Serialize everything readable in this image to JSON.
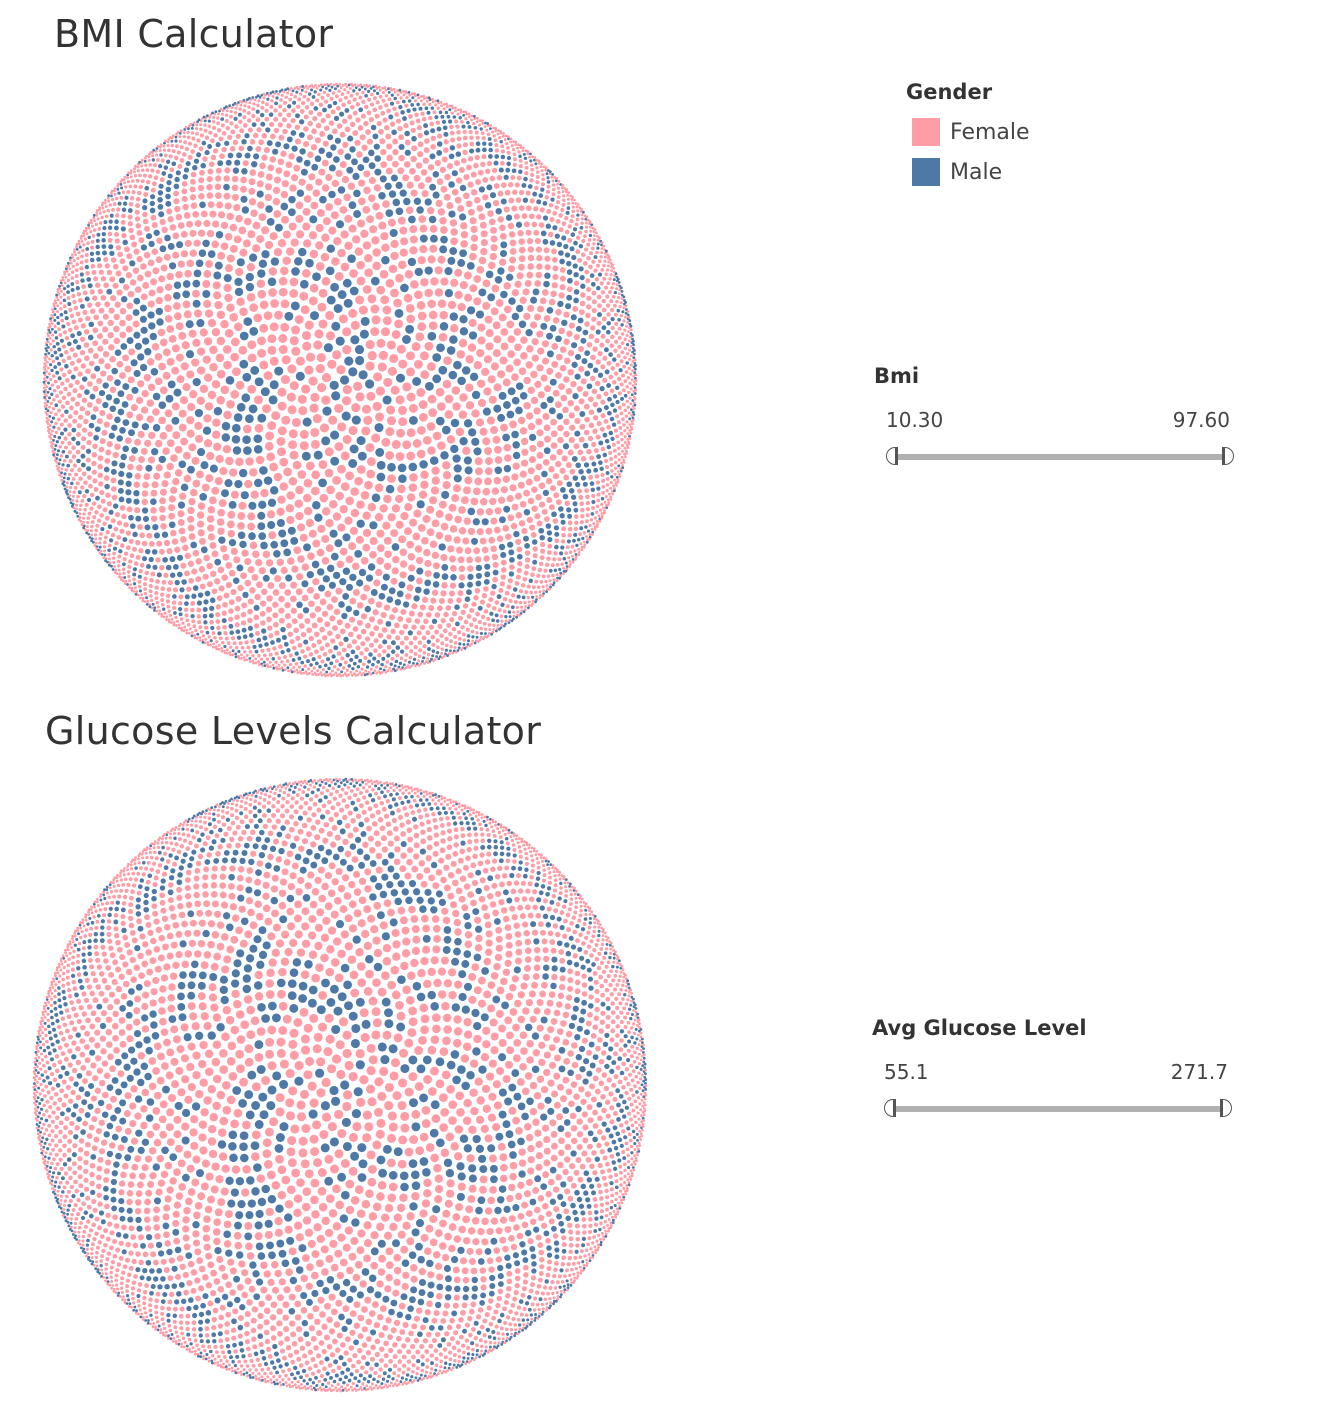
{
  "colors": {
    "female": "#ff9da7",
    "male": "#4e79a7",
    "text": "#333333",
    "slider_track": "#b0b0b0"
  },
  "legend": {
    "title": "Gender",
    "items": [
      {
        "label": "Female",
        "color": "#ff9da7"
      },
      {
        "label": "Male",
        "color": "#4e79a7"
      }
    ]
  },
  "filters": {
    "bmi": {
      "title": "Bmi",
      "min_label": "10.30",
      "max_label": "97.60",
      "min": 10.3,
      "max": 97.6
    },
    "glucose": {
      "title": "Avg Glucose Level",
      "min_label": "55.1",
      "max_label": "271.7",
      "min": 55.1,
      "max": 271.7
    }
  },
  "chart_data": [
    {
      "type": "packed-bubble",
      "title": "BMI Calculator",
      "color_field": "Gender",
      "categories": [
        "Female",
        "Male"
      ],
      "approx_share": {
        "Female": 0.7,
        "Male": 0.3
      },
      "legend_position": "right"
    },
    {
      "type": "packed-bubble",
      "title": "Glucose Levels Calculator",
      "color_field": "Gender",
      "categories": [
        "Female",
        "Male"
      ],
      "approx_share": {
        "Female": 0.7,
        "Male": 0.3
      },
      "legend_position": "right"
    }
  ]
}
